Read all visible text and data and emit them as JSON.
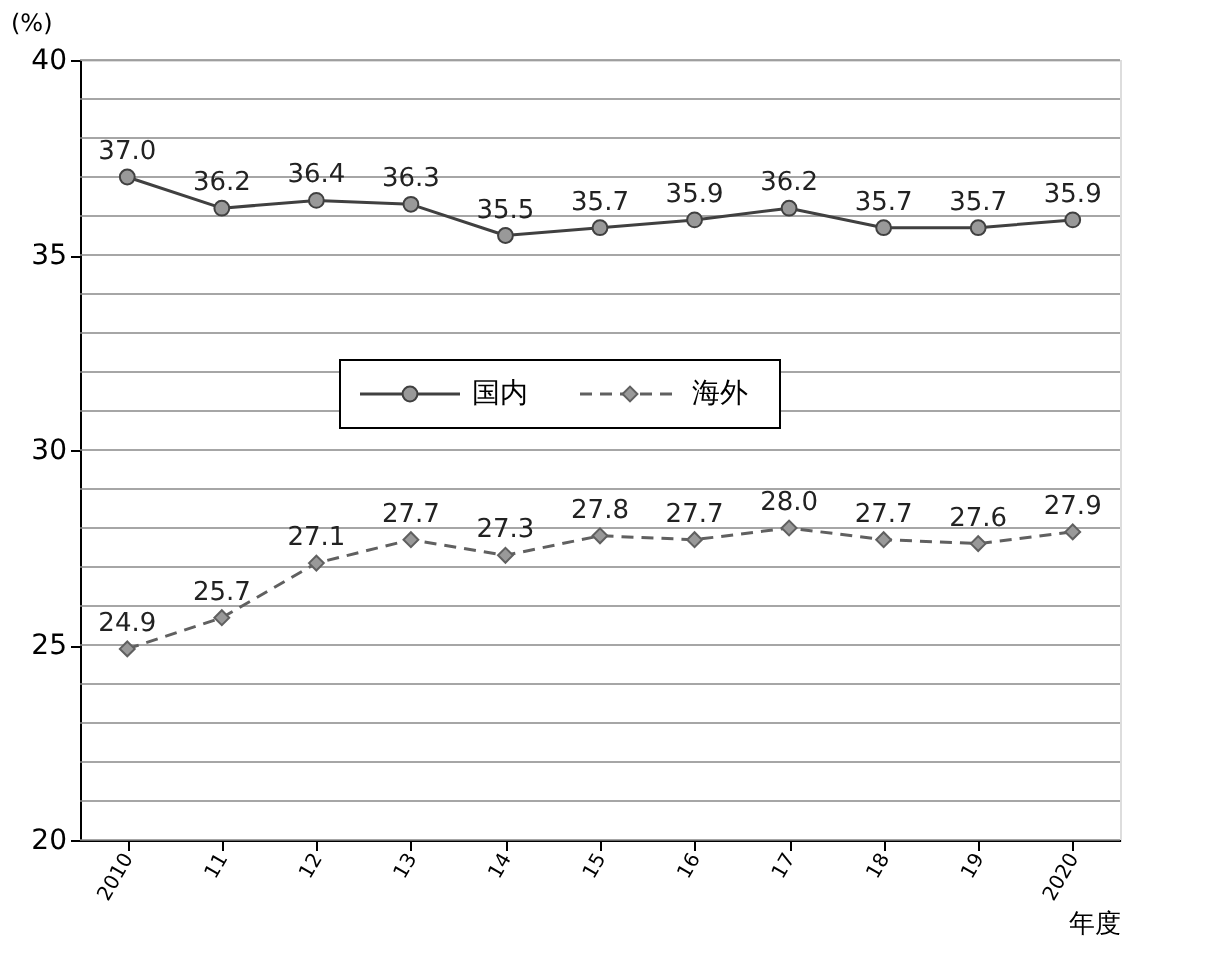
{
  "chart_data": {
    "type": "line",
    "ylabel": "(%)",
    "xlabel": "年度",
    "categories": [
      "2010",
      "11",
      "12",
      "13",
      "14",
      "15",
      "16",
      "17",
      "18",
      "19",
      "2020"
    ],
    "series": [
      {
        "name": "国内",
        "color": "#404040",
        "marker": "circle",
        "line_style": "solid",
        "values": [
          37.0,
          36.2,
          36.4,
          36.3,
          35.5,
          35.7,
          35.9,
          36.2,
          35.7,
          35.7,
          35.9
        ],
        "value_labels": [
          "37.0",
          "36.2",
          "36.4",
          "36.3",
          "35.5",
          "35.7",
          "35.9",
          "36.2",
          "35.7",
          "35.7",
          "35.9"
        ]
      },
      {
        "name": "海外",
        "color": "#606060",
        "marker": "diamond",
        "line_style": "dashed",
        "values": [
          24.9,
          25.7,
          27.1,
          27.7,
          27.3,
          27.8,
          27.7,
          28.0,
          27.7,
          27.6,
          27.9
        ],
        "value_labels": [
          "24.9",
          "25.7",
          "27.1",
          "27.7",
          "27.3",
          "27.8",
          "27.7",
          "28.0",
          "27.7",
          "27.6",
          "27.9"
        ]
      }
    ],
    "ylim": [
      20,
      40
    ],
    "yticks": [
      20,
      {
        "value": 21,
        "label": null
      },
      {
        "value": 22,
        "label": null
      },
      {
        "value": 23,
        "label": null
      },
      {
        "value": 24,
        "label": null
      },
      25,
      {
        "value": 26,
        "label": null
      },
      {
        "value": 27,
        "label": null
      },
      {
        "value": 28,
        "label": null
      },
      {
        "value": 29,
        "label": null
      },
      30,
      {
        "value": 31,
        "label": null
      },
      {
        "value": 32,
        "label": null
      },
      {
        "value": 33,
        "label": null
      },
      {
        "value": 34,
        "label": null
      },
      35,
      {
        "value": 36,
        "label": null
      },
      {
        "value": 37,
        "label": null
      },
      {
        "value": 38,
        "label": null
      },
      {
        "value": 39,
        "label": null
      },
      40
    ],
    "grid": "y",
    "legend": "center"
  }
}
